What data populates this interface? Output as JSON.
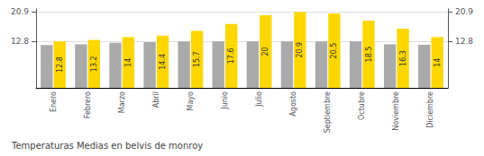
{
  "chart_data": {
    "type": "bar",
    "title": "Temperaturas Medias en belvis de monroy",
    "categories": [
      "Enero",
      "Febrero",
      "Marzo",
      "Abril",
      "Mayo",
      "Junio",
      "Julio",
      "Agosto",
      "Septiembre",
      "Octubre",
      "Noviembre",
      "Diciembre"
    ],
    "series": [
      {
        "color": "#AAAAAA",
        "values": [
          11.8,
          12.0,
          12.4,
          12.6,
          12.8,
          12.8,
          12.8,
          12.8,
          12.8,
          12.8,
          12.0,
          11.9
        ]
      },
      {
        "color": "#FFD700",
        "data_labels": true,
        "values": [
          12.8,
          13.2,
          14.0,
          14.4,
          15.7,
          17.6,
          20.0,
          20.9,
          20.5,
          18.5,
          16.3,
          14.0
        ]
      }
    ],
    "ylim": [
      0,
      21.736
    ],
    "yticks": [
      12.8,
      20.9
    ],
    "y2lim": [
      0,
      21.736
    ],
    "y2ticks": [
      12.8,
      20.9
    ],
    "grid": true
  }
}
